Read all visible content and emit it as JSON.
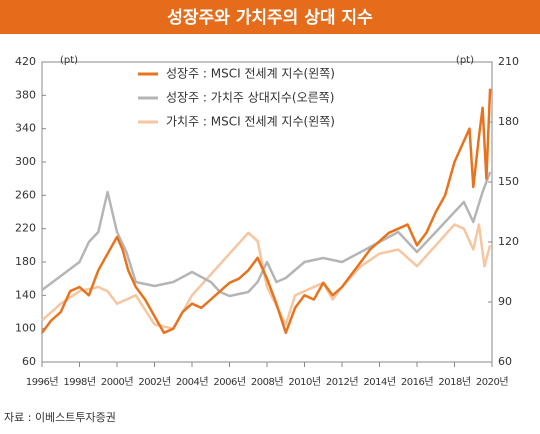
{
  "chart_data": {
    "type": "line",
    "title": "성장주와 가치주의 상대 지수",
    "y_unit": "(pt)",
    "y2_unit": "(pt)",
    "source": "자료 : 이베스트투자증권",
    "xlim": [
      1996,
      2020
    ],
    "xticks": [
      {
        "value": 1996,
        "label": "1996년"
      },
      {
        "value": 1998,
        "label": "1998년"
      },
      {
        "value": 2000,
        "label": "2000년"
      },
      {
        "value": 2002,
        "label": "2002년"
      },
      {
        "value": 2004,
        "label": "2004년"
      },
      {
        "value": 2006,
        "label": "2006년"
      },
      {
        "value": 2008,
        "label": "2008년"
      },
      {
        "value": 2010,
        "label": "2010년"
      },
      {
        "value": 2012,
        "label": "2012년"
      },
      {
        "value": 2014,
        "label": "2014년"
      },
      {
        "value": 2016,
        "label": "2016년"
      },
      {
        "value": 2018,
        "label": "2018년"
      },
      {
        "value": 2020,
        "label": "2020년"
      }
    ],
    "ylim": [
      60,
      420
    ],
    "yticks": [
      60,
      100,
      140,
      180,
      220,
      260,
      300,
      340,
      380,
      420
    ],
    "y2lim": [
      60,
      210
    ],
    "y2ticks": [
      60,
      90,
      120,
      150,
      180,
      210
    ],
    "series": [
      {
        "name": "성장주 : MSCI 전세계 지수(왼쪽)",
        "color": "#e8731e",
        "x": [
          1996,
          1996.5,
          1997,
          1997.5,
          1998,
          1998.5,
          1999,
          1999.5,
          2000,
          2000.3,
          2000.6,
          2001,
          2001.5,
          2002,
          2002.5,
          2003,
          2003.5,
          2004,
          2004.5,
          2005,
          2005.5,
          2006,
          2006.5,
          2007,
          2007.5,
          2008,
          2008.5,
          2009,
          2009.5,
          2010,
          2010.5,
          2011,
          2011.5,
          2012,
          2012.5,
          2013,
          2013.5,
          2014,
          2014.5,
          2015,
          2015.5,
          2016,
          2016.5,
          2017,
          2017.5,
          2018,
          2018.4,
          2018.8,
          2019,
          2019.3,
          2019.5,
          2019.7,
          2019.9
        ],
        "values": [
          95,
          110,
          120,
          145,
          150,
          140,
          170,
          190,
          210,
          195,
          170,
          150,
          135,
          115,
          95,
          100,
          120,
          130,
          125,
          135,
          145,
          155,
          160,
          170,
          185,
          160,
          130,
          95,
          125,
          140,
          135,
          155,
          140,
          150,
          165,
          180,
          195,
          205,
          215,
          220,
          225,
          200,
          215,
          240,
          260,
          300,
          320,
          340,
          270,
          330,
          365,
          280,
          388
        ]
      },
      {
        "name": "성장주 : 가치주 상대지수(오른쪽)",
        "color": "#b5b5b5",
        "axis": "y2",
        "x": [
          1996,
          1997,
          1998,
          1998.5,
          1999,
          1999.5,
          2000,
          2000.5,
          2001,
          2002,
          2003,
          2004,
          2005,
          2005.5,
          2006,
          2007,
          2007.5,
          2008,
          2008.5,
          2009,
          2010,
          2011,
          2012,
          2013,
          2014,
          2015,
          2016,
          2017,
          2018,
          2018.5,
          2019,
          2019.5,
          2019.9
        ],
        "values": [
          96,
          103,
          110,
          120,
          125,
          145,
          125,
          115,
          100,
          98,
          100,
          105,
          100,
          95,
          93,
          95,
          100,
          110,
          100,
          102,
          110,
          112,
          110,
          115,
          120,
          125,
          115,
          125,
          135,
          140,
          130,
          145,
          155
        ]
      },
      {
        "name": "가치주 : MSCI 전세계 지수(왼쪽)",
        "color": "#f6c6a0",
        "x": [
          1996,
          1997,
          1998,
          1999,
          1999.5,
          2000,
          2001,
          2002,
          2003,
          2004,
          2005,
          2006,
          2007,
          2007.5,
          2008,
          2009,
          2009.5,
          2010,
          2011,
          2011.5,
          2012,
          2013,
          2014,
          2015,
          2016,
          2017,
          2018,
          2018.5,
          2019,
          2019.3,
          2019.6,
          2019.9
        ],
        "values": [
          110,
          130,
          145,
          150,
          145,
          130,
          140,
          105,
          100,
          140,
          165,
          190,
          215,
          205,
          150,
          105,
          140,
          145,
          155,
          135,
          150,
          175,
          190,
          195,
          175,
          200,
          225,
          220,
          195,
          225,
          175,
          200
        ]
      }
    ]
  }
}
